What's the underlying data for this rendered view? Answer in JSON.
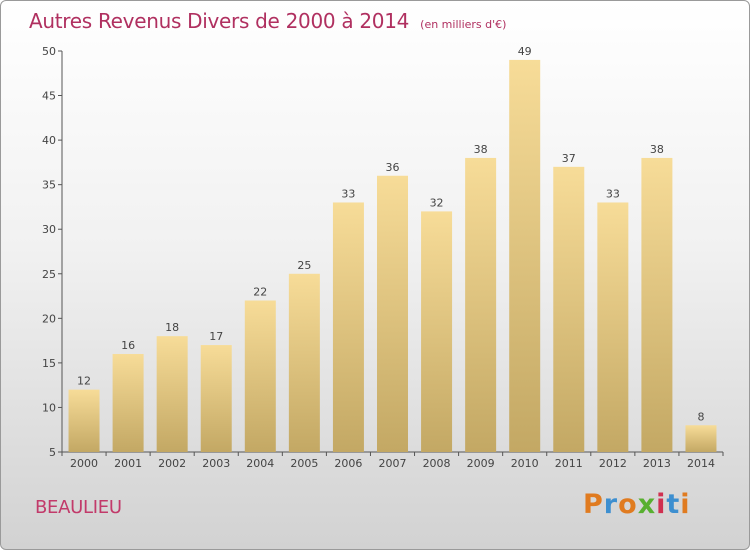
{
  "header": {
    "title": "Autres Revenus Divers de 2000 à 2014",
    "subtitle": "(en milliers d'€)"
  },
  "footer": {
    "location": "BEAULIEU",
    "brand": "Proxiti"
  },
  "colors": {
    "title": "#b03060",
    "bar_light": "#f7dc98",
    "bar_dark": "#c3a864",
    "axis": "#555555",
    "brand_letters": [
      "#e07b20",
      "#3d8fd0",
      "#e07b20",
      "#58b030",
      "#d03050",
      "#3d8fd0",
      "#e07b20"
    ]
  },
  "chart_data": {
    "type": "bar",
    "title": "Autres Revenus Divers de 2000 à 2014",
    "subtitle": "(en milliers d'€)",
    "categories": [
      "2000",
      "2001",
      "2002",
      "2003",
      "2004",
      "2005",
      "2006",
      "2007",
      "2008",
      "2009",
      "2010",
      "2011",
      "2012",
      "2013",
      "2014"
    ],
    "values": [
      12,
      16,
      18,
      17,
      22,
      25,
      33,
      36,
      32,
      38,
      49,
      37,
      33,
      38,
      8
    ],
    "yticks": [
      "5",
      "10",
      "15",
      "20",
      "25",
      "30",
      "35",
      "40",
      "45",
      "50"
    ],
    "ylim": [
      5,
      50
    ],
    "grid": false,
    "data_labels": true
  }
}
